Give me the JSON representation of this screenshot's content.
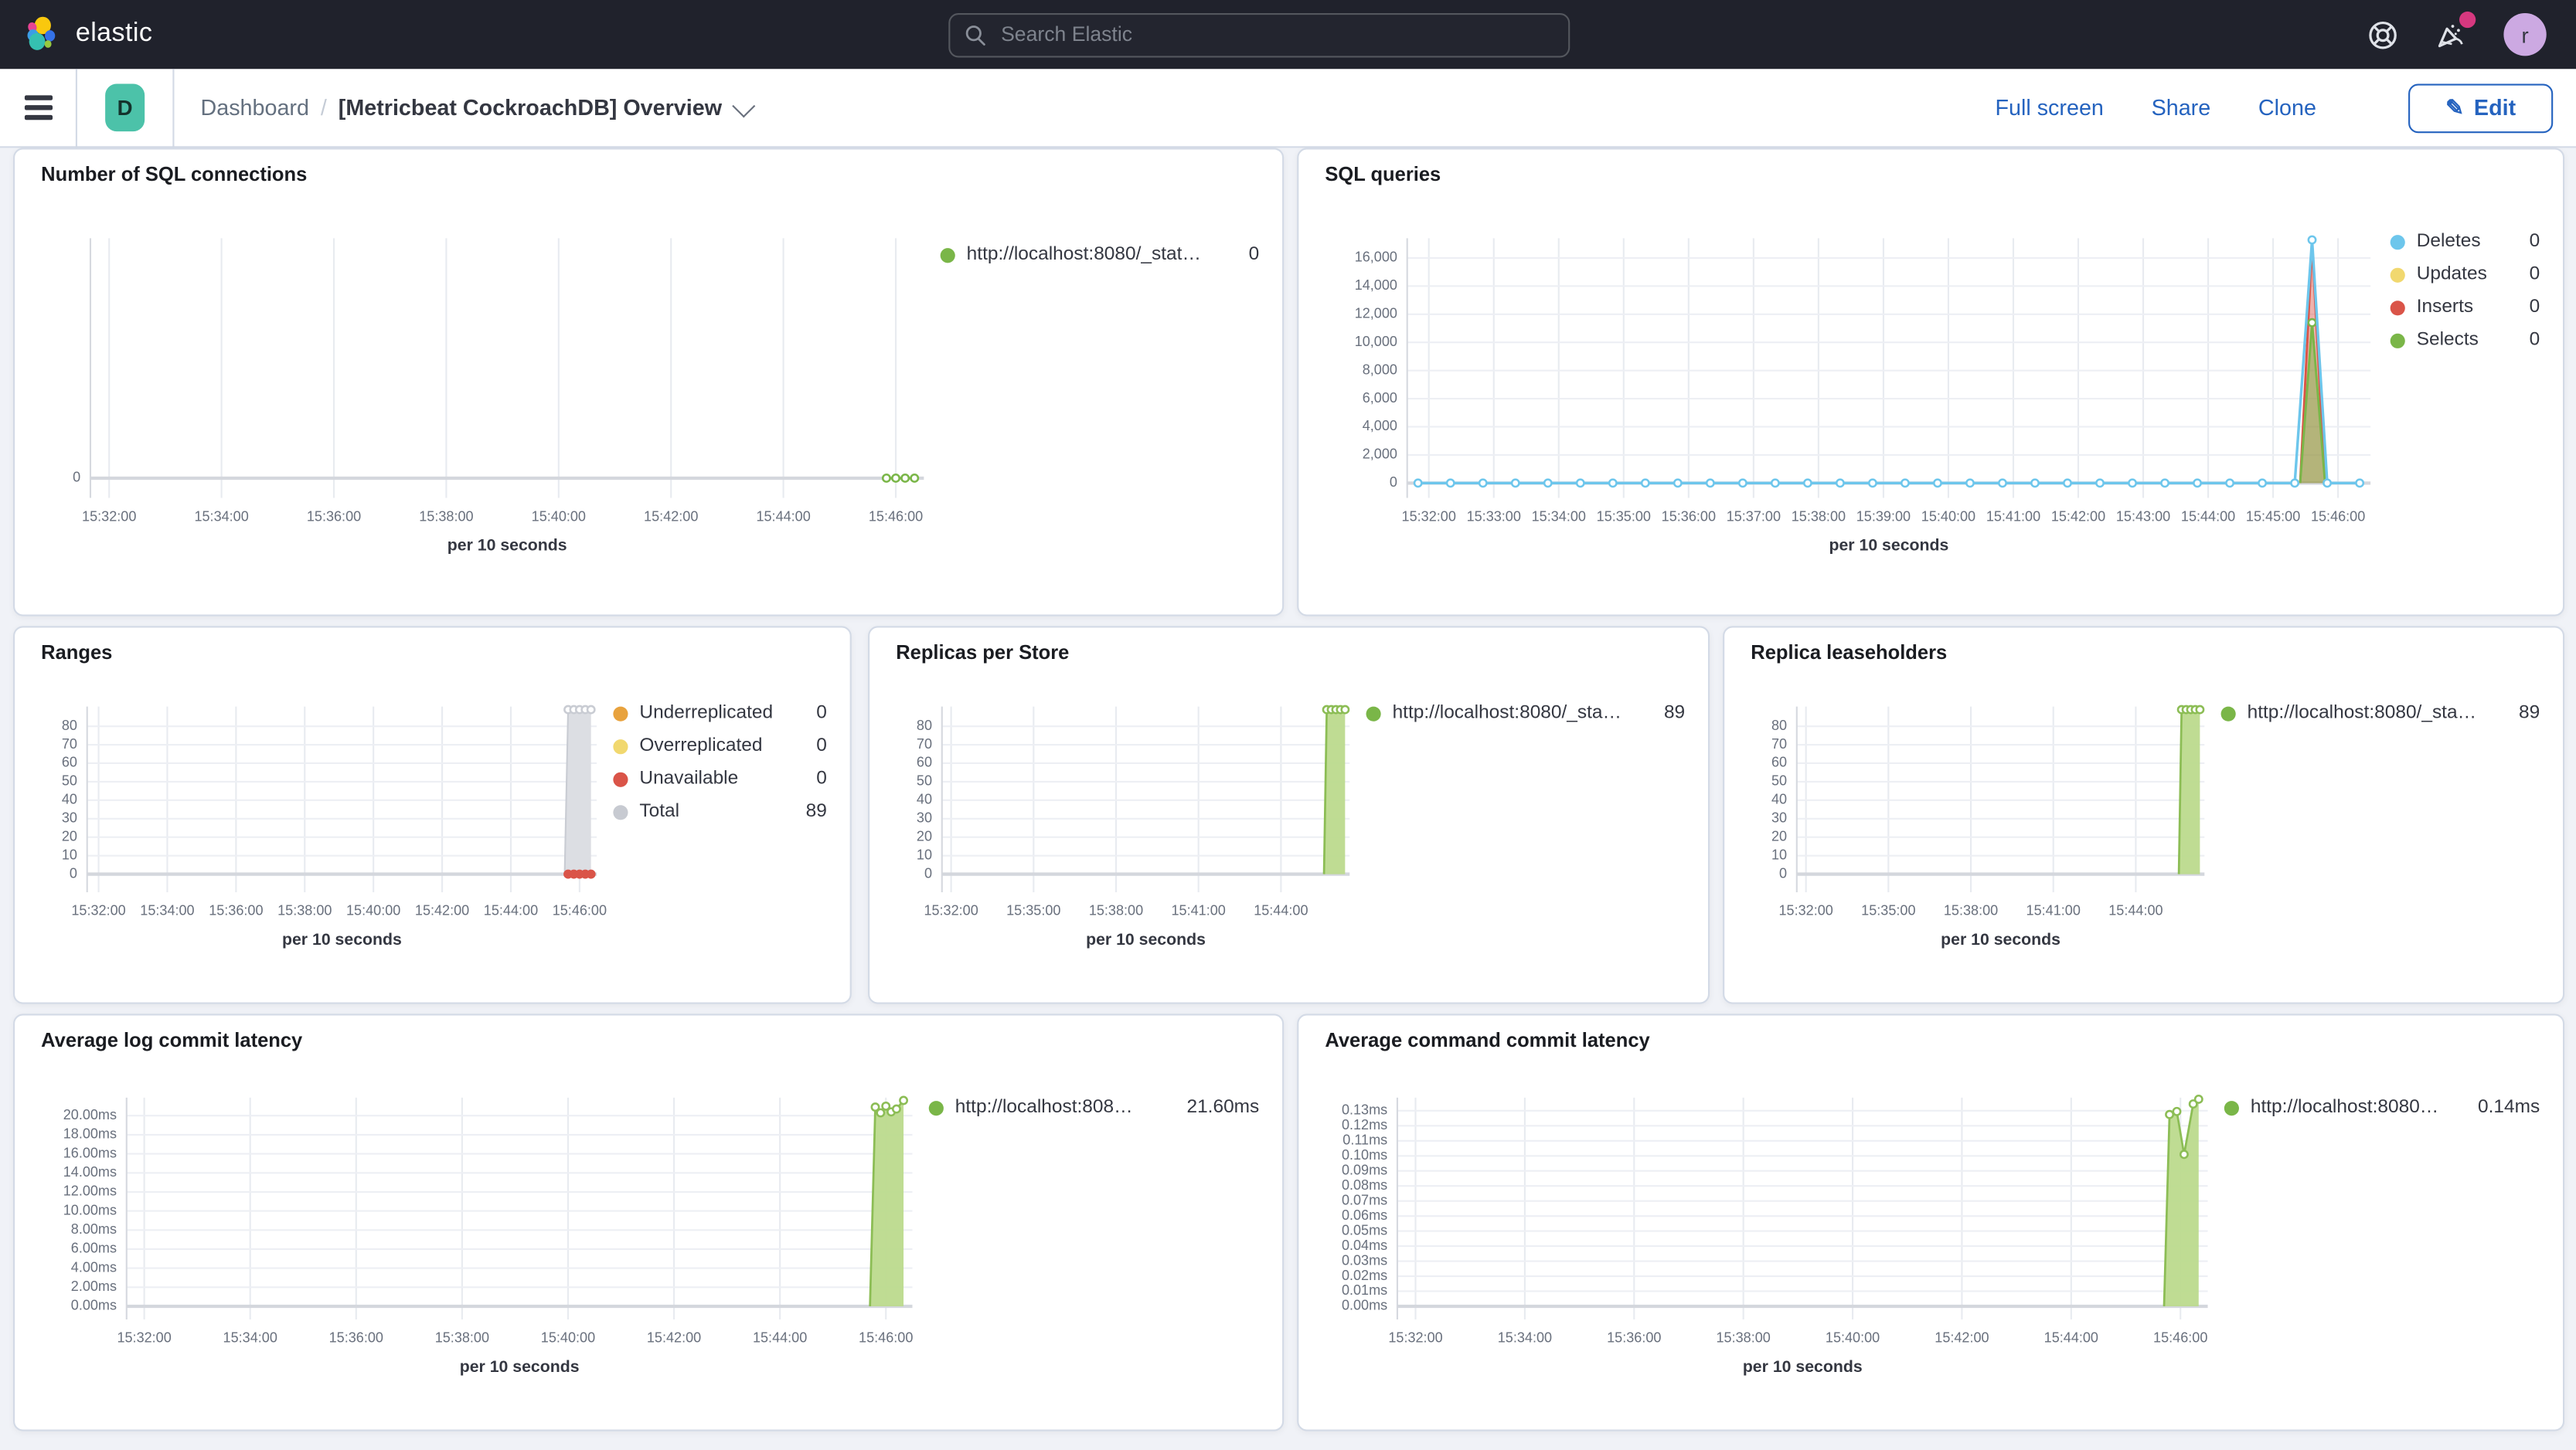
{
  "topbar": {
    "brand": "elastic",
    "search_placeholder": "Search Elastic",
    "avatar_initial": "r"
  },
  "subheader": {
    "app_badge": "D",
    "breadcrumb_root": "Dashboard",
    "breadcrumb_sep": "/",
    "title": "[Metricbeat CockroachDB] Overview",
    "actions": [
      "Full screen",
      "Share",
      "Clone"
    ],
    "edit_label": "Edit",
    "edit_icon": "pencil-icon"
  },
  "colors": {
    "topbar_bg": "#20222C",
    "accent_blue": "#2563BF",
    "badge_teal": "#4CC2A9",
    "notification_pink": "#D6387F",
    "series_green": "#7AB648",
    "series_blue": "#6DC6EC",
    "series_yellow": "#F1D86F",
    "series_red": "#DA5448",
    "series_orange": "#E8A23D",
    "series_gray": "#C7CAD1"
  },
  "panels": [
    {
      "title": "Number of SQL connections",
      "legend": [
        {
          "label": "http://localhost:8080/_stat…",
          "value": "0",
          "color": "#7AB648"
        }
      ]
    },
    {
      "title": "SQL queries",
      "legend": [
        {
          "label": "Deletes",
          "value": "0",
          "color": "#6DC6EC"
        },
        {
          "label": "Updates",
          "value": "0",
          "color": "#F1D86F"
        },
        {
          "label": "Inserts",
          "value": "0",
          "color": "#DA5448"
        },
        {
          "label": "Selects",
          "value": "0",
          "color": "#7AB648"
        }
      ]
    },
    {
      "title": "Ranges",
      "legend": [
        {
          "label": "Underreplicated",
          "value": "0",
          "color": "#E8A23D"
        },
        {
          "label": "Overreplicated",
          "value": "0",
          "color": "#F1D86F"
        },
        {
          "label": "Unavailable",
          "value": "0",
          "color": "#DA5448"
        },
        {
          "label": "Total",
          "value": "89",
          "color": "#C7CAD1"
        }
      ]
    },
    {
      "title": "Replicas per Store",
      "legend": [
        {
          "label": "http://localhost:8080/_sta…",
          "value": "89",
          "color": "#7AB648"
        }
      ]
    },
    {
      "title": "Replica leaseholders",
      "legend": [
        {
          "label": "http://localhost:8080/_sta…",
          "value": "89",
          "color": "#7AB648"
        }
      ]
    },
    {
      "title": "Average log commit latency",
      "legend": [
        {
          "label": "http://localhost:808…",
          "value": "21.60ms",
          "color": "#7AB648"
        }
      ]
    },
    {
      "title": "Average command commit latency",
      "legend": [
        {
          "label": "http://localhost:8080…",
          "value": "0.14ms",
          "color": "#7AB648"
        }
      ]
    }
  ],
  "chart_data": [
    {
      "id": "number-of-sql-connections",
      "type": "line",
      "layout": {
        "ml": 36,
        "mr": 10,
        "mt": 24,
        "mb": 57,
        "head": 10,
        "zp": 12
      },
      "x_axis": {
        "label": "per 10 seconds",
        "domain": [
          "15:31:40",
          "15:46:30"
        ],
        "ticks": [
          "15:32:00",
          "15:34:00",
          "15:36:00",
          "15:38:00",
          "15:40:00",
          "15:42:00",
          "15:44:00",
          "15:46:00"
        ]
      },
      "y_axis": {
        "max": 1,
        "ticks": [
          [
            0,
            "0"
          ]
        ]
      },
      "series": [
        {
          "name": "http://localhost:8080/_stat…",
          "type": "line",
          "color": "#7AB648",
          "width": 1.4,
          "markers": "open",
          "points": [
            {
              "from": "15:45:50",
              "to": "15:46:20",
              "step_s": 10,
              "v": 0
            }
          ]
        }
      ]
    },
    {
      "id": "sql-queries",
      "type": "area",
      "layout": {
        "ml": 56,
        "mr": 12,
        "mt": 24,
        "mb": 57,
        "head": 12,
        "zp": 9
      },
      "x_axis": {
        "label": "per 10 seconds",
        "domain": [
          "15:31:40",
          "15:46:30"
        ],
        "ticks": [
          "15:32:00",
          "15:33:00",
          "15:34:00",
          "15:35:00",
          "15:36:00",
          "15:37:00",
          "15:38:00",
          "15:39:00",
          "15:40:00",
          "15:41:00",
          "15:42:00",
          "15:43:00",
          "15:44:00",
          "15:45:00",
          "15:46:00"
        ]
      },
      "y_axis": {
        "max": 16000,
        "ticks": [
          [
            0,
            "0"
          ],
          [
            2000,
            "2,000"
          ],
          [
            4000,
            "4,000"
          ],
          [
            6000,
            "6,000"
          ],
          [
            8000,
            "8,000"
          ],
          [
            10000,
            "10,000"
          ],
          [
            12000,
            "12,000"
          ],
          [
            14000,
            "14,000"
          ],
          [
            16000,
            "16,000"
          ]
        ]
      },
      "series": [
        {
          "name": "Updates",
          "type": "line",
          "color": "#F1D86F",
          "width": 0,
          "markers": "none",
          "points": []
        },
        {
          "name": "Inserts",
          "type": "area",
          "color": "#DA5448",
          "fill_opacity": 0.45,
          "width": 1.4,
          "markers": "none",
          "points": [
            [
              "15:45:25",
              0
            ],
            [
              "15:45:36",
              16900
            ],
            [
              "15:45:48",
              0
            ]
          ]
        },
        {
          "name": "Selects",
          "type": "area",
          "color": "#7AB648",
          "fill_opacity": 0.5,
          "width": 1.4,
          "markers": "open",
          "marker_indices": [
            1
          ],
          "points": [
            [
              "15:45:25",
              0
            ],
            [
              "15:45:36",
              11400
            ],
            [
              "15:45:48",
              0
            ]
          ]
        },
        {
          "name": "Deletes",
          "type": "line",
          "color": "#6DC6EC",
          "width": 1.6,
          "markers": "open",
          "points": [
            {
              "from": "15:31:50",
              "to": "15:45:20",
              "step_s": 30,
              "v": 0
            },
            [
              "15:45:36",
              17300
            ],
            {
              "from": "15:45:50",
              "to": "15:46:20",
              "step_s": 30,
              "v": 0
            }
          ]
        }
      ]
    },
    {
      "id": "ranges",
      "type": "area",
      "layout": {
        "ml": 34,
        "mr": 10,
        "mt": 18,
        "mb": 53,
        "head": 12,
        "zp": 11
      },
      "x_axis": {
        "label": "per 10 seconds",
        "domain": [
          "15:31:40",
          "15:46:30"
        ],
        "ticks": [
          "15:32:00",
          "15:34:00",
          "15:36:00",
          "15:38:00",
          "15:40:00",
          "15:42:00",
          "15:44:00",
          "15:46:00"
        ]
      },
      "y_axis": {
        "max": 80,
        "ticks": [
          [
            0,
            "0"
          ],
          [
            10,
            "10"
          ],
          [
            20,
            "20"
          ],
          [
            30,
            "30"
          ],
          [
            40,
            "40"
          ],
          [
            50,
            "50"
          ],
          [
            60,
            "60"
          ],
          [
            70,
            "70"
          ],
          [
            80,
            "80"
          ]
        ]
      },
      "series": [
        {
          "name": "Underreplicated",
          "type": "line",
          "color": "#E8A23D",
          "width": 0,
          "markers": "none",
          "points": []
        },
        {
          "name": "Overreplicated",
          "type": "line",
          "color": "#F1D86F",
          "width": 0,
          "markers": "none",
          "points": []
        },
        {
          "name": "Total",
          "type": "area",
          "color": "#DCDEE3",
          "stroke": "#C9CCD3",
          "fill_opacity": 1,
          "width": 1,
          "markers": "open",
          "marker_from_index": 1,
          "points": [
            [
              "15:45:34",
              0
            ],
            {
              "from": "15:45:40",
              "to": "15:46:20",
              "step_s": 10,
              "v": 89
            }
          ]
        },
        {
          "name": "Unavailable",
          "type": "line",
          "color": "#DA5448",
          "width": 0,
          "markers": "solid",
          "points": [
            {
              "from": "15:45:40",
              "to": "15:46:20",
              "step_s": 10,
              "v": 0
            }
          ]
        }
      ]
    },
    {
      "id": "replicas-per-store",
      "type": "area",
      "layout": {
        "ml": 34,
        "mr": 10,
        "mt": 18,
        "mb": 53,
        "head": 12,
        "zp": 11
      },
      "x_axis": {
        "label": "per 10 seconds",
        "domain": [
          "15:31:40",
          "15:46:30"
        ],
        "ticks": [
          "15:32:00",
          "15:35:00",
          "15:38:00",
          "15:41:00",
          "15:44:00"
        ]
      },
      "y_axis": {
        "max": 80,
        "ticks": [
          [
            0,
            "0"
          ],
          [
            10,
            "10"
          ],
          [
            20,
            "20"
          ],
          [
            30,
            "30"
          ],
          [
            40,
            "40"
          ],
          [
            50,
            "50"
          ],
          [
            60,
            "60"
          ],
          [
            70,
            "70"
          ],
          [
            80,
            "80"
          ]
        ]
      },
      "series": [
        {
          "name": "http://localhost:8080/_sta…",
          "type": "area",
          "color": "#BCDA8D",
          "stroke": "#8CBD55",
          "fill_opacity": 0.95,
          "width": 1.3,
          "markers": "open",
          "marker_from_index": 1,
          "points": [
            [
              "15:45:34",
              0
            ],
            {
              "from": "15:45:40",
              "to": "15:46:20",
              "step_s": 10,
              "v": 89
            }
          ]
        }
      ]
    },
    {
      "id": "replica-leaseholders",
      "type": "area",
      "layout": {
        "ml": 34,
        "mr": 10,
        "mt": 18,
        "mb": 53,
        "head": 12,
        "zp": 11
      },
      "x_axis": {
        "label": "per 10 seconds",
        "domain": [
          "15:31:40",
          "15:46:30"
        ],
        "ticks": [
          "15:32:00",
          "15:35:00",
          "15:38:00",
          "15:41:00",
          "15:44:00"
        ]
      },
      "y_axis": {
        "max": 80,
        "ticks": [
          [
            0,
            "0"
          ],
          [
            10,
            "10"
          ],
          [
            20,
            "20"
          ],
          [
            30,
            "30"
          ],
          [
            40,
            "40"
          ],
          [
            50,
            "50"
          ],
          [
            60,
            "60"
          ],
          [
            70,
            "70"
          ],
          [
            80,
            "80"
          ]
        ]
      },
      "series": [
        {
          "name": "http://localhost:8080/_sta…",
          "type": "area",
          "color": "#BCDA8D",
          "stroke": "#8CBD55",
          "fill_opacity": 0.95,
          "width": 1.3,
          "markers": "open",
          "marker_from_index": 1,
          "points": [
            [
              "15:45:34",
              0
            ],
            {
              "from": "15:45:40",
              "to": "15:46:20",
              "step_s": 10,
              "v": 89
            }
          ]
        }
      ]
    },
    {
      "id": "average-log-commit-latency",
      "type": "area",
      "layout": {
        "ml": 58,
        "mr": 10,
        "mt": 20,
        "mb": 53,
        "head": 11,
        "zp": 8
      },
      "x_axis": {
        "label": "per 10 seconds",
        "domain": [
          "15:31:40",
          "15:46:30"
        ],
        "ticks": [
          "15:32:00",
          "15:34:00",
          "15:36:00",
          "15:38:00",
          "15:40:00",
          "15:42:00",
          "15:44:00",
          "15:46:00"
        ]
      },
      "y_axis": {
        "max": 20,
        "ticks": [
          [
            0,
            "0.00ms"
          ],
          [
            2,
            "2.00ms"
          ],
          [
            4,
            "4.00ms"
          ],
          [
            6,
            "6.00ms"
          ],
          [
            8,
            "8.00ms"
          ],
          [
            10,
            "10.00ms"
          ],
          [
            12,
            "12.00ms"
          ],
          [
            14,
            "14.00ms"
          ],
          [
            16,
            "16.00ms"
          ],
          [
            18,
            "18.00ms"
          ],
          [
            20,
            "20.00ms"
          ]
        ]
      },
      "series": [
        {
          "name": "http://localhost:808…",
          "type": "area",
          "color": "#BCDA8D",
          "stroke": "#8CBD55",
          "fill_opacity": 0.95,
          "width": 1.3,
          "markers": "open",
          "marker_from_index": 1,
          "points": [
            [
              "15:45:42",
              0
            ],
            [
              "15:45:48",
              20.9
            ],
            [
              "15:45:54",
              20.3
            ],
            [
              "15:46:00",
              21.0
            ],
            [
              "15:46:06",
              20.4
            ],
            [
              "15:46:12",
              20.7
            ],
            [
              "15:46:20",
              21.6
            ]
          ]
        }
      ]
    },
    {
      "id": "average-command-commit-latency",
      "type": "area",
      "layout": {
        "ml": 50,
        "mr": 10,
        "mt": 20,
        "mb": 53,
        "head": 8,
        "zp": 8
      },
      "x_axis": {
        "label": "per 10 seconds",
        "domain": [
          "15:31:40",
          "15:46:30"
        ],
        "ticks": [
          "15:32:00",
          "15:34:00",
          "15:36:00",
          "15:38:00",
          "15:40:00",
          "15:42:00",
          "15:44:00",
          "15:46:00"
        ]
      },
      "y_axis": {
        "max": 0.13,
        "ticks": [
          [
            0,
            "0.00ms"
          ],
          [
            0.01,
            "0.01ms"
          ],
          [
            0.02,
            "0.02ms"
          ],
          [
            0.03,
            "0.03ms"
          ],
          [
            0.04,
            "0.04ms"
          ],
          [
            0.05,
            "0.05ms"
          ],
          [
            0.06,
            "0.06ms"
          ],
          [
            0.07,
            "0.07ms"
          ],
          [
            0.08,
            "0.08ms"
          ],
          [
            0.09,
            "0.09ms"
          ],
          [
            0.1,
            "0.10ms"
          ],
          [
            0.11,
            "0.11ms"
          ],
          [
            0.12,
            "0.12ms"
          ],
          [
            0.13,
            "0.13ms"
          ]
        ]
      },
      "series": [
        {
          "name": "http://localhost:8080…",
          "type": "area",
          "color": "#BCDA8D",
          "stroke": "#8CBD55",
          "fill_opacity": 0.95,
          "width": 1.3,
          "markers": "open",
          "marker_from_index": 1,
          "points": [
            [
              "15:45:42",
              0
            ],
            [
              "15:45:48",
              0.1275
            ],
            [
              "15:45:56",
              0.1295
            ],
            [
              "15:46:04",
              0.101
            ],
            [
              "15:46:14",
              0.1345
            ],
            [
              "15:46:20",
              0.139
            ]
          ]
        }
      ]
    }
  ]
}
